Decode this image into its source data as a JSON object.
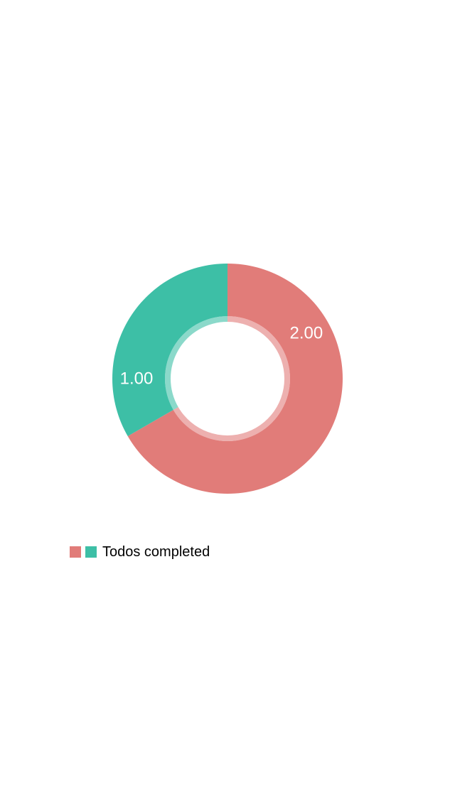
{
  "chart_data": {
    "type": "pie",
    "variant": "donut",
    "series": [
      {
        "name": "Todos completed",
        "values": [
          2.0,
          1.0
        ],
        "value_labels": [
          "2.00",
          "1.00"
        ]
      }
    ],
    "colors": [
      "#E17C79",
      "#3DBFA6"
    ],
    "start_angle_deg": -90,
    "direction": "clockwise",
    "legend_position": "bottom-left",
    "label_color": "#ffffff",
    "background": "#ffffff"
  },
  "legend": {
    "label": "Todos completed"
  }
}
